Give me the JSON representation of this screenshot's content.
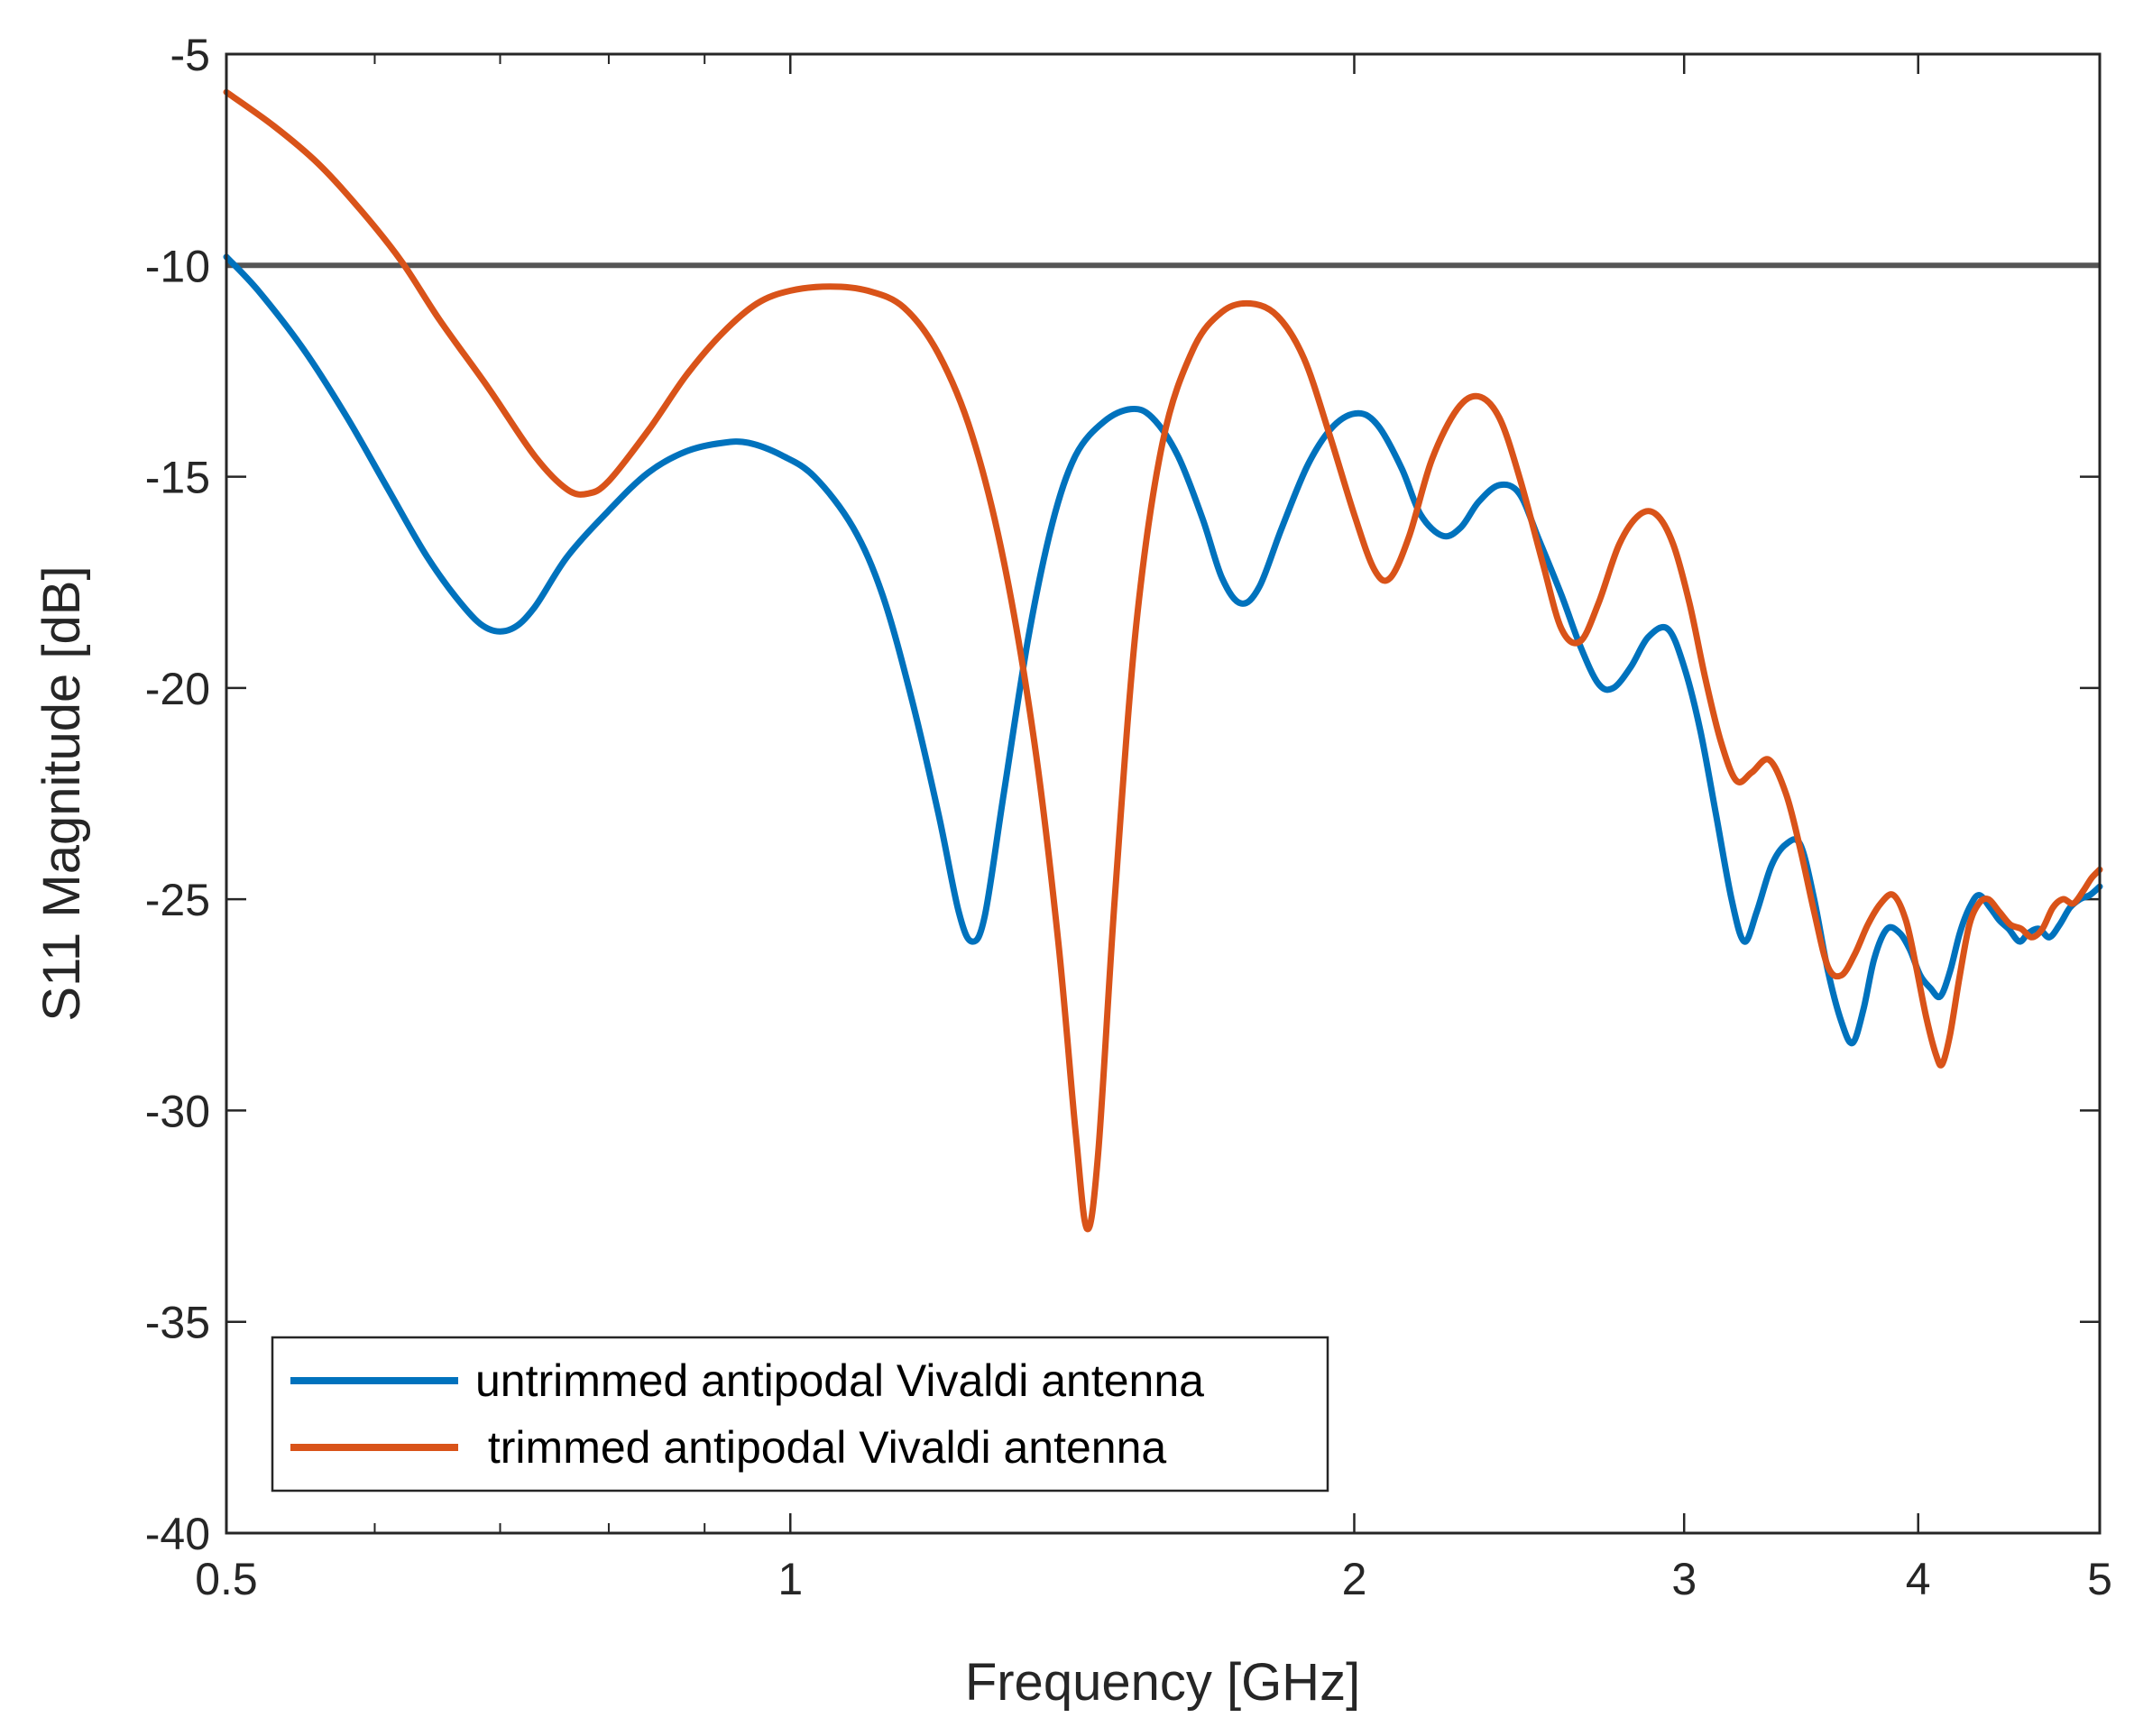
{
  "chart_data": {
    "type": "line",
    "title": "",
    "xlabel": "Frequency [GHz]",
    "ylabel": "S11 Magnitude [dB]",
    "xscale": "log",
    "xlim": [
      0.5,
      5
    ],
    "ylim": [
      -40,
      -5
    ],
    "xticks": [
      0.5,
      1,
      2,
      3,
      4,
      5
    ],
    "xtick_labels": [
      "0.5",
      "1",
      "2",
      "3",
      "4",
      "5"
    ],
    "yticks": [
      -40,
      -35,
      -30,
      -25,
      -20,
      -15,
      -10,
      -5
    ],
    "ytick_labels": [
      "-40",
      "-35",
      "-30",
      "-25",
      "-20",
      "-15",
      "-10",
      "-5"
    ],
    "reference_line": {
      "y": -10,
      "color": "#555555"
    },
    "legend_position": "lower-left",
    "series": [
      {
        "name": "untrimmed antipodal Vivaldi antenna",
        "legend_label": "untrimmed antipodal Vivaldi antenna",
        "color": "#0072BD",
        "points": [
          [
            0.5,
            -9.8
          ],
          [
            0.52,
            -10.6
          ],
          [
            0.55,
            -12.0
          ],
          [
            0.58,
            -13.6
          ],
          [
            0.61,
            -15.3
          ],
          [
            0.64,
            -16.9
          ],
          [
            0.67,
            -18.1
          ],
          [
            0.69,
            -18.6
          ],
          [
            0.71,
            -18.6
          ],
          [
            0.73,
            -18.1
          ],
          [
            0.76,
            -16.9
          ],
          [
            0.8,
            -15.8
          ],
          [
            0.84,
            -14.9
          ],
          [
            0.88,
            -14.4
          ],
          [
            0.92,
            -14.2
          ],
          [
            0.95,
            -14.2
          ],
          [
            0.99,
            -14.5
          ],
          [
            1.03,
            -15.0
          ],
          [
            1.08,
            -16.2
          ],
          [
            1.12,
            -17.8
          ],
          [
            1.16,
            -20.2
          ],
          [
            1.2,
            -23.0
          ],
          [
            1.23,
            -25.3
          ],
          [
            1.25,
            -26.0
          ],
          [
            1.27,
            -25.4
          ],
          [
            1.3,
            -22.5
          ],
          [
            1.34,
            -18.8
          ],
          [
            1.38,
            -16.1
          ],
          [
            1.42,
            -14.5
          ],
          [
            1.47,
            -13.7
          ],
          [
            1.52,
            -13.4
          ],
          [
            1.56,
            -13.6
          ],
          [
            1.61,
            -14.5
          ],
          [
            1.66,
            -16.0
          ],
          [
            1.7,
            -17.4
          ],
          [
            1.74,
            -18.0
          ],
          [
            1.78,
            -17.6
          ],
          [
            1.83,
            -16.2
          ],
          [
            1.89,
            -14.7
          ],
          [
            1.95,
            -13.8
          ],
          [
            2.01,
            -13.5
          ],
          [
            2.06,
            -13.8
          ],
          [
            2.12,
            -14.8
          ],
          [
            2.17,
            -15.9
          ],
          [
            2.23,
            -16.4
          ],
          [
            2.28,
            -16.2
          ],
          [
            2.33,
            -15.6
          ],
          [
            2.39,
            -15.2
          ],
          [
            2.45,
            -15.4
          ],
          [
            2.51,
            -16.5
          ],
          [
            2.58,
            -17.8
          ],
          [
            2.64,
            -19.0
          ],
          [
            2.7,
            -19.9
          ],
          [
            2.75,
            -20.0
          ],
          [
            2.81,
            -19.5
          ],
          [
            2.87,
            -18.8
          ],
          [
            2.94,
            -18.6
          ],
          [
            3.0,
            -19.5
          ],
          [
            3.06,
            -21.0
          ],
          [
            3.12,
            -23.0
          ],
          [
            3.18,
            -25.0
          ],
          [
            3.23,
            -26.0
          ],
          [
            3.28,
            -25.3
          ],
          [
            3.34,
            -24.2
          ],
          [
            3.4,
            -23.7
          ],
          [
            3.46,
            -23.7
          ],
          [
            3.52,
            -25.0
          ],
          [
            3.58,
            -26.7
          ],
          [
            3.64,
            -27.9
          ],
          [
            3.69,
            -28.4
          ],
          [
            3.74,
            -27.6
          ],
          [
            3.79,
            -26.4
          ],
          [
            3.85,
            -25.7
          ],
          [
            3.91,
            -25.8
          ],
          [
            3.96,
            -26.2
          ],
          [
            4.01,
            -26.8
          ],
          [
            4.06,
            -27.1
          ],
          [
            4.11,
            -27.3
          ],
          [
            4.16,
            -26.7
          ],
          [
            4.21,
            -25.8
          ],
          [
            4.26,
            -25.2
          ],
          [
            4.31,
            -24.9
          ],
          [
            4.37,
            -25.2
          ],
          [
            4.42,
            -25.5
          ],
          [
            4.47,
            -25.7
          ],
          [
            4.53,
            -26.0
          ],
          [
            4.58,
            -25.8
          ],
          [
            4.64,
            -25.7
          ],
          [
            4.7,
            -25.9
          ],
          [
            4.76,
            -25.6
          ],
          [
            4.82,
            -25.2
          ],
          [
            4.88,
            -25.0
          ],
          [
            4.94,
            -24.9
          ],
          [
            5.0,
            -24.7
          ]
        ]
      },
      {
        "name": "trimmed antipodal Vivaldi antenna",
        "legend_label": " trimmed antipodal Vivaldi antenna",
        "color": "#D95319",
        "points": [
          [
            0.5,
            -5.9
          ],
          [
            0.53,
            -6.7
          ],
          [
            0.56,
            -7.6
          ],
          [
            0.59,
            -8.7
          ],
          [
            0.62,
            -9.9
          ],
          [
            0.65,
            -11.3
          ],
          [
            0.69,
            -12.9
          ],
          [
            0.73,
            -14.5
          ],
          [
            0.76,
            -15.3
          ],
          [
            0.78,
            -15.4
          ],
          [
            0.8,
            -15.1
          ],
          [
            0.84,
            -13.9
          ],
          [
            0.88,
            -12.6
          ],
          [
            0.92,
            -11.6
          ],
          [
            0.96,
            -10.9
          ],
          [
            1.0,
            -10.6
          ],
          [
            1.05,
            -10.5
          ],
          [
            1.1,
            -10.6
          ],
          [
            1.15,
            -11.0
          ],
          [
            1.2,
            -12.1
          ],
          [
            1.25,
            -14.0
          ],
          [
            1.3,
            -17.0
          ],
          [
            1.35,
            -21.3
          ],
          [
            1.39,
            -26.0
          ],
          [
            1.42,
            -30.5
          ],
          [
            1.44,
            -32.8
          ],
          [
            1.46,
            -31.0
          ],
          [
            1.49,
            -25.0
          ],
          [
            1.53,
            -18.5
          ],
          [
            1.58,
            -14.2
          ],
          [
            1.64,
            -12.0
          ],
          [
            1.7,
            -11.1
          ],
          [
            1.76,
            -10.9
          ],
          [
            1.82,
            -11.2
          ],
          [
            1.88,
            -12.2
          ],
          [
            1.94,
            -14.0
          ],
          [
            2.0,
            -15.9
          ],
          [
            2.05,
            -17.2
          ],
          [
            2.09,
            -17.4
          ],
          [
            2.14,
            -16.4
          ],
          [
            2.2,
            -14.6
          ],
          [
            2.27,
            -13.4
          ],
          [
            2.33,
            -13.1
          ],
          [
            2.39,
            -13.6
          ],
          [
            2.45,
            -15.0
          ],
          [
            2.52,
            -17.0
          ],
          [
            2.58,
            -18.6
          ],
          [
            2.64,
            -18.9
          ],
          [
            2.7,
            -18.0
          ],
          [
            2.77,
            -16.6
          ],
          [
            2.84,
            -15.9
          ],
          [
            2.9,
            -15.9
          ],
          [
            2.96,
            -16.6
          ],
          [
            3.02,
            -18.0
          ],
          [
            3.08,
            -19.8
          ],
          [
            3.14,
            -21.3
          ],
          [
            3.2,
            -22.2
          ],
          [
            3.26,
            -22.0
          ],
          [
            3.33,
            -21.7
          ],
          [
            3.4,
            -22.5
          ],
          [
            3.46,
            -23.8
          ],
          [
            3.52,
            -25.3
          ],
          [
            3.58,
            -26.6
          ],
          [
            3.64,
            -26.8
          ],
          [
            3.7,
            -26.3
          ],
          [
            3.76,
            -25.6
          ],
          [
            3.82,
            -25.1
          ],
          [
            3.88,
            -24.9
          ],
          [
            3.94,
            -25.5
          ],
          [
            3.99,
            -26.6
          ],
          [
            4.04,
            -27.8
          ],
          [
            4.09,
            -28.7
          ],
          [
            4.12,
            -28.9
          ],
          [
            4.16,
            -28.2
          ],
          [
            4.21,
            -26.8
          ],
          [
            4.26,
            -25.6
          ],
          [
            4.31,
            -25.1
          ],
          [
            4.36,
            -25.0
          ],
          [
            4.42,
            -25.3
          ],
          [
            4.48,
            -25.6
          ],
          [
            4.54,
            -25.7
          ],
          [
            4.6,
            -25.9
          ],
          [
            4.66,
            -25.7
          ],
          [
            4.72,
            -25.2
          ],
          [
            4.78,
            -25.0
          ],
          [
            4.84,
            -25.1
          ],
          [
            4.9,
            -24.8
          ],
          [
            4.95,
            -24.5
          ],
          [
            5.0,
            -24.3
          ]
        ]
      }
    ]
  }
}
